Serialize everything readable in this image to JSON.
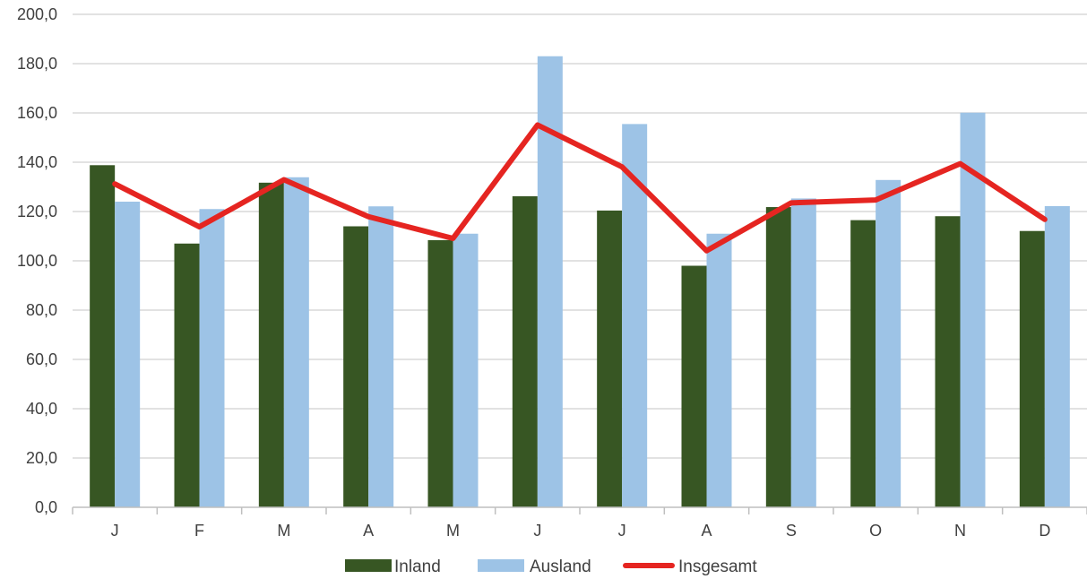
{
  "chart_data": {
    "type": "bar",
    "categories": [
      "J",
      "F",
      "M",
      "A",
      "M",
      "J",
      "J",
      "A",
      "S",
      "O",
      "N",
      "D"
    ],
    "series": [
      {
        "name": "Inland",
        "kind": "bar",
        "color": "#375623",
        "values": [
          138.8,
          107.0,
          131.7,
          114.0,
          108.4,
          126.2,
          120.4,
          98.0,
          121.8,
          116.5,
          118.1,
          112.1
        ]
      },
      {
        "name": "Ausland",
        "kind": "bar",
        "color": "#9DC3E6",
        "values": [
          124.0,
          121.0,
          133.9,
          122.1,
          111.0,
          183.0,
          155.5,
          111.0,
          125.3,
          132.8,
          160.1,
          122.2
        ]
      },
      {
        "name": "Insgesamt",
        "kind": "line",
        "color": "#E52521",
        "values": [
          131.2,
          113.8,
          132.9,
          117.9,
          109.1,
          155.1,
          138.1,
          104.1,
          123.5,
          124.7,
          139.4,
          116.8
        ]
      }
    ],
    "ylim": [
      0,
      200
    ],
    "yticks": [
      "0,0",
      "20,0",
      "40,0",
      "60,0",
      "80,0",
      "100,0",
      "120,0",
      "140,0",
      "160,0",
      "180,0",
      "200,0"
    ],
    "grid": true,
    "legend_position": "bottom",
    "title": "",
    "xlabel": "",
    "ylabel": ""
  }
}
